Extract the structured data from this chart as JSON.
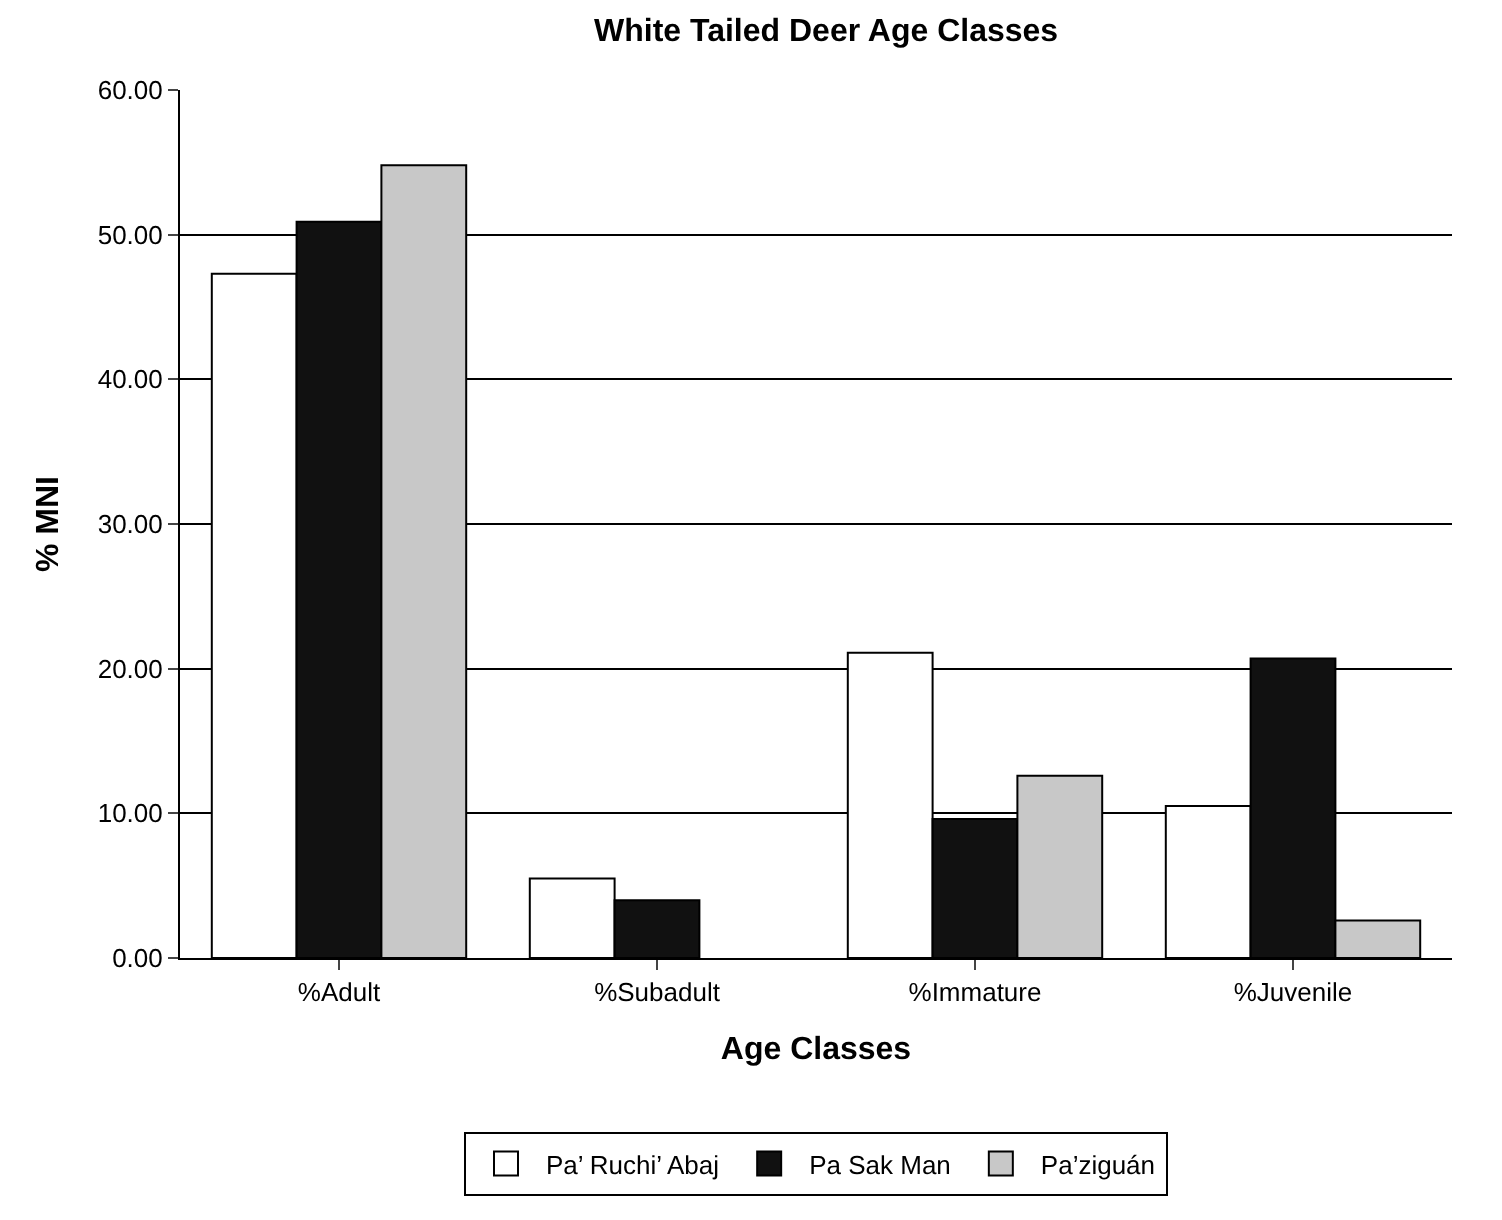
{
  "chart_data": {
    "type": "bar",
    "title": "White Tailed Deer Age Classes",
    "xlabel": "Age Classes",
    "ylabel": "% MNI",
    "categories": [
      "%Adult",
      "%Subadult",
      "%Immature",
      "%Juvenile"
    ],
    "series": [
      {
        "name": "Pa’ Ruchi’ Abaj",
        "color": "#ffffff",
        "values": [
          47.3,
          5.5,
          21.1,
          10.5
        ]
      },
      {
        "name": "Pa Sak Man",
        "color": "#111111",
        "values": [
          50.9,
          4.0,
          9.6,
          20.7
        ]
      },
      {
        "name": "Pa’ziguán",
        "color": "#c8c8c8",
        "values": [
          54.8,
          null,
          12.6,
          2.6
        ]
      }
    ],
    "ylim": [
      0,
      60
    ],
    "yticks": [
      {
        "value": 0,
        "label": "0.00"
      },
      {
        "value": 10,
        "label": "10.00"
      },
      {
        "value": 20,
        "label": "20.00"
      },
      {
        "value": 30,
        "label": "30.00"
      },
      {
        "value": 40,
        "label": "40.00"
      },
      {
        "value": 50,
        "label": "50.00"
      },
      {
        "value": 60,
        "label": "60.00"
      }
    ],
    "grid": "y",
    "legend": "bottom"
  }
}
